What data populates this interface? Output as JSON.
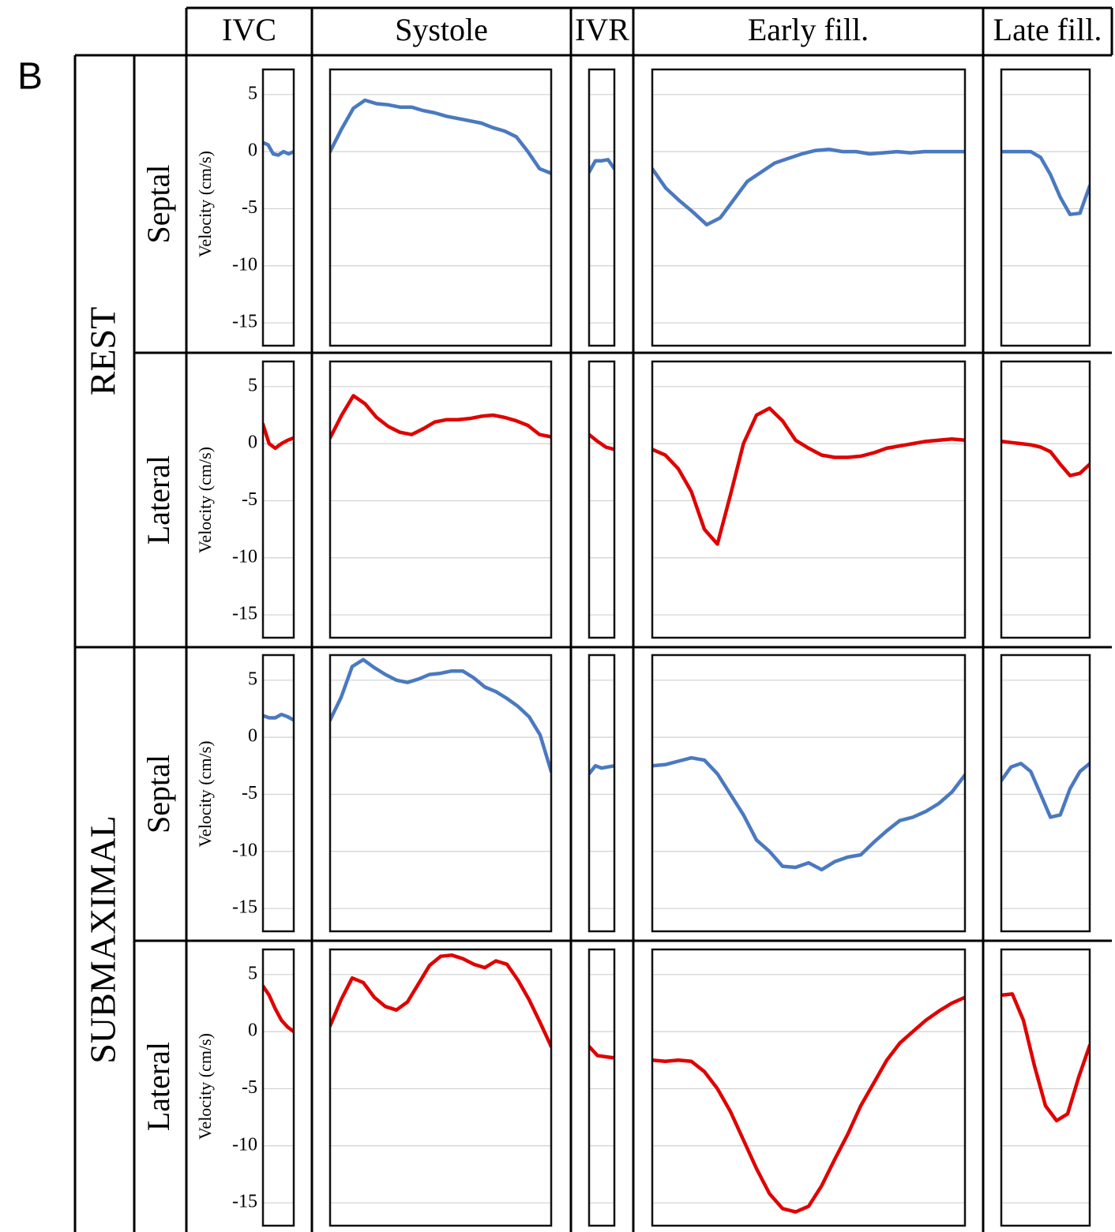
{
  "panel_label": "B",
  "chart_data": {
    "type": "line",
    "ylabel": "Velocity (cm/s)",
    "ylim": [
      -17,
      7.2
    ],
    "yticks": [
      5,
      0,
      -5,
      -10,
      -15
    ],
    "grid": true,
    "columns": [
      "IVC",
      "Systole",
      "IVR",
      "Early fill.",
      "Late fill."
    ],
    "groups": [
      "REST",
      "SUBMAXIMAL"
    ],
    "rows": [
      {
        "label": "Septal",
        "color": "#4a79c0",
        "panels": [
          [
            0.8,
            0.6,
            -0.2,
            -0.3,
            0,
            -0.2,
            0
          ],
          [
            0,
            2,
            3.8,
            4.5,
            4.2,
            4.1,
            3.9,
            3.9,
            3.6,
            3.4,
            3.1,
            2.9,
            2.7,
            2.5,
            2.1,
            1.8,
            1.3,
            0,
            -1.5,
            -1.9
          ],
          [
            -1.8,
            -0.8,
            -0.8,
            -0.7,
            -1.5
          ],
          [
            -1.5,
            -3.2,
            -4.3,
            -5.3,
            -6.4,
            -5.8,
            -4.2,
            -2.6,
            -1.8,
            -1,
            -0.6,
            -0.2,
            0.1,
            0.2,
            0,
            0,
            -0.2,
            -0.1,
            0,
            -0.1,
            0,
            0,
            0,
            0
          ],
          [
            0,
            0,
            0,
            0,
            -0.5,
            -2,
            -4,
            -5.5,
            -5.4,
            -3
          ]
        ]
      },
      {
        "label": "Lateral",
        "color": "#e00000",
        "panels": [
          [
            1.7,
            0,
            -0.4,
            0,
            0.3,
            0.5
          ],
          [
            0.5,
            2.5,
            4.2,
            3.5,
            2.3,
            1.5,
            1.0,
            0.8,
            1.3,
            1.9,
            2.1,
            2.1,
            2.2,
            2.4,
            2.5,
            2.3,
            2.0,
            1.6,
            0.8,
            0.6
          ],
          [
            0.8,
            0.2,
            -0.3,
            -0.5
          ],
          [
            -0.5,
            -1.0,
            -2.2,
            -4.2,
            -7.5,
            -8.8,
            -4.5,
            0,
            2.5,
            3.1,
            2.0,
            0.3,
            -0.4,
            -1.0,
            -1.2,
            -1.2,
            -1.1,
            -0.8,
            -0.4,
            -0.2,
            0,
            0.2,
            0.3,
            0.4,
            0.3
          ],
          [
            0.2,
            0.1,
            0,
            -0.1,
            -0.3,
            -0.7,
            -1.8,
            -2.8,
            -2.6,
            -1.8
          ]
        ]
      },
      {
        "label": "Septal",
        "color": "#4a79c0",
        "panels": [
          [
            1.9,
            1.7,
            1.7,
            2.0,
            1.8,
            1.5
          ],
          [
            1.5,
            3.5,
            6.2,
            6.8,
            6.1,
            5.5,
            5.0,
            4.8,
            5.1,
            5.5,
            5.6,
            5.8,
            5.8,
            5.2,
            4.4,
            4.0,
            3.4,
            2.7,
            1.8,
            0.2,
            -3
          ],
          [
            -3.2,
            -2.5,
            -2.7,
            -2.6,
            -2.5
          ],
          [
            -2.5,
            -2.4,
            -2.1,
            -1.8,
            -2.0,
            -3.2,
            -5.0,
            -6.8,
            -9.0,
            -10.0,
            -11.3,
            -11.4,
            -11.0,
            -11.6,
            -10.9,
            -10.5,
            -10.3,
            -9.2,
            -8.2,
            -7.3,
            -7.0,
            -6.5,
            -5.8,
            -4.8,
            -3.3
          ],
          [
            -3.8,
            -2.6,
            -2.3,
            -3.0,
            -5.0,
            -7.0,
            -6.8,
            -4.5,
            -3.0,
            -2.3
          ]
        ]
      },
      {
        "label": "Lateral",
        "color": "#e00000",
        "panels": [
          [
            4,
            3.2,
            2,
            1,
            0.4,
            0
          ],
          [
            0.5,
            2.8,
            4.7,
            4.3,
            3.0,
            2.2,
            1.9,
            2.6,
            4.2,
            5.8,
            6.6,
            6.7,
            6.4,
            5.9,
            5.6,
            6.2,
            5.9,
            4.5,
            2.8,
            0.8,
            -1.3
          ],
          [
            -1.3,
            -2.1,
            -2.2,
            -2.3
          ],
          [
            -2.5,
            -2.6,
            -2.5,
            -2.6,
            -3.5,
            -5.0,
            -7.0,
            -9.5,
            -12.0,
            -14.2,
            -15.5,
            -15.8,
            -15.3,
            -13.5,
            -11.2,
            -9.0,
            -6.5,
            -4.5,
            -2.5,
            -1.0,
            0,
            1.0,
            1.8,
            2.5,
            3.0
          ],
          [
            3.2,
            3.3,
            1.0,
            -3.0,
            -6.5,
            -7.8,
            -7.2,
            -4.0,
            -1.2
          ]
        ]
      }
    ]
  }
}
